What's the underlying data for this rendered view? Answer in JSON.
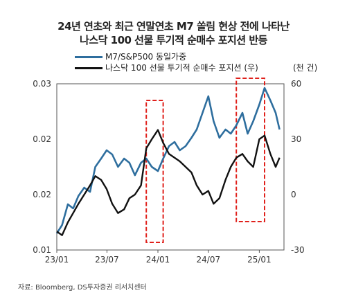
{
  "chart_data": {
    "type": "line",
    "title": "24년 연초와 최근 연말연초 M7 쏠림 현상 전에 나타난",
    "subtitle": "나스닥 100 선물 투기적 순매수 포지션 반등",
    "right_axis_unit": "(천 건)",
    "source": "자료: Bloomberg, DS투자증권 리서치센터",
    "x_ticks": [
      "23/01",
      "23/07",
      "24/01",
      "24/07",
      "25/01"
    ],
    "y_left": {
      "range": [
        0.01,
        0.03
      ],
      "ticks": [
        "0.01",
        "0.02",
        "0.02",
        "0.03"
      ]
    },
    "y_right": {
      "range": [
        -30,
        60
      ],
      "ticks": [
        "-30",
        "0",
        "30",
        "60"
      ]
    },
    "grid": false,
    "legend_position": "top-left",
    "series": [
      {
        "name": "M7/S&P500 동일가중",
        "axis": "left",
        "color": "#2e6e9e",
        "x": [
          "2023-01-01",
          "2023-01-20",
          "2023-02-10",
          "2023-03-01",
          "2023-03-20",
          "2023-04-10",
          "2023-05-01",
          "2023-05-20",
          "2023-06-10",
          "2023-06-30",
          "2023-07-20",
          "2023-08-10",
          "2023-09-01",
          "2023-09-20",
          "2023-10-10",
          "2023-11-01",
          "2023-11-20",
          "2023-12-10",
          "2024-01-01",
          "2024-01-20",
          "2024-02-10",
          "2024-03-01",
          "2024-03-20",
          "2024-04-10",
          "2024-05-01",
          "2024-05-20",
          "2024-06-10",
          "2024-07-01",
          "2024-07-20",
          "2024-08-10",
          "2024-09-01",
          "2024-09-20",
          "2024-10-10",
          "2024-11-01",
          "2024-11-20",
          "2024-12-10",
          "2025-01-01",
          "2025-01-20",
          "2025-02-10",
          "2025-03-01",
          "2025-03-15"
        ],
        "y": [
          0.012,
          0.013,
          0.0155,
          0.015,
          0.0165,
          0.0175,
          0.017,
          0.02,
          0.021,
          0.022,
          0.0215,
          0.02,
          0.021,
          0.0205,
          0.019,
          0.0205,
          0.021,
          0.02,
          0.0195,
          0.021,
          0.0225,
          0.023,
          0.022,
          0.0225,
          0.0235,
          0.0245,
          0.0265,
          0.0285,
          0.0255,
          0.0235,
          0.0245,
          0.024,
          0.025,
          0.0265,
          0.024,
          0.0255,
          0.0275,
          0.0295,
          0.028,
          0.0265,
          0.0245
        ]
      },
      {
        "name": "나스닥 100 선물 투기적 순매수 포지션 (우)",
        "axis": "right",
        "color": "#111111",
        "x": [
          "2023-01-01",
          "2023-01-20",
          "2023-02-10",
          "2023-03-01",
          "2023-03-20",
          "2023-04-10",
          "2023-05-01",
          "2023-05-20",
          "2023-06-10",
          "2023-06-30",
          "2023-07-20",
          "2023-08-10",
          "2023-09-01",
          "2023-09-20",
          "2023-10-10",
          "2023-11-01",
          "2023-11-20",
          "2023-12-10",
          "2024-01-01",
          "2024-01-20",
          "2024-02-10",
          "2024-03-01",
          "2024-03-20",
          "2024-04-10",
          "2024-05-01",
          "2024-05-20",
          "2024-06-10",
          "2024-07-01",
          "2024-07-20",
          "2024-08-10",
          "2024-09-01",
          "2024-09-20",
          "2024-10-10",
          "2024-11-01",
          "2024-11-20",
          "2024-12-10",
          "2025-01-01",
          "2025-01-20",
          "2025-02-10",
          "2025-03-01",
          "2025-03-15"
        ],
        "y": [
          -20,
          -22,
          -15,
          -10,
          -5,
          0,
          5,
          10,
          8,
          3,
          -5,
          -10,
          -8,
          -2,
          0,
          5,
          25,
          30,
          35,
          28,
          22,
          20,
          18,
          15,
          12,
          5,
          0,
          2,
          -5,
          -2,
          8,
          15,
          20,
          22,
          18,
          15,
          30,
          32,
          22,
          15,
          20
        ]
      }
    ],
    "highlights": [
      {
        "x_start": "2023-11-20",
        "x_end": "2024-01-20",
        "style": "red dashed box"
      },
      {
        "x_start": "2024-10-10",
        "x_end": "2025-01-20",
        "style": "red dashed box"
      }
    ]
  }
}
